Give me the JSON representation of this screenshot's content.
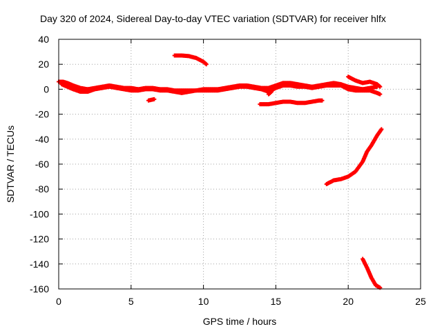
{
  "chart_data": {
    "type": "scatter",
    "title": "Day 320 of 2024, Sidereal Day-to-day VTEC variation (SDTVAR) for receiver hlfx",
    "xlabel": "GPS time / hours",
    "ylabel": "SDTVAR / TECUs",
    "xlim": [
      0,
      25
    ],
    "ylim": [
      -160,
      40
    ],
    "xticks": [
      0,
      5,
      10,
      15,
      20,
      25
    ],
    "yticks": [
      40,
      20,
      0,
      -20,
      -40,
      -60,
      -80,
      -100,
      -120,
      -140,
      -160
    ],
    "grid": true,
    "legend": "none",
    "marker_color": "#ff0000",
    "series": [
      {
        "points": [
          [
            0,
            6
          ],
          [
            0.3,
            6
          ],
          [
            0.6,
            5
          ],
          [
            1.0,
            3
          ],
          [
            1.5,
            1
          ],
          [
            2.0,
            0
          ],
          [
            2.5,
            1
          ],
          [
            3.0,
            2
          ],
          [
            3.5,
            3
          ],
          [
            4.0,
            2
          ],
          [
            4.5,
            1
          ],
          [
            5.0,
            1
          ],
          [
            5.5,
            0
          ],
          [
            6.0,
            1
          ],
          [
            6.5,
            1
          ],
          [
            7.0,
            0
          ],
          [
            7.5,
            0
          ],
          [
            8.0,
            -1
          ],
          [
            8.5,
            -1
          ],
          [
            9.0,
            -1
          ],
          [
            9.5,
            -1
          ],
          [
            10.0,
            0
          ],
          [
            10.5,
            0
          ],
          [
            11.0,
            0
          ],
          [
            11.5,
            1
          ],
          [
            12.0,
            2
          ],
          [
            12.5,
            3
          ],
          [
            13.0,
            3
          ],
          [
            13.5,
            2
          ],
          [
            14.0,
            1
          ],
          [
            14.5,
            1
          ],
          [
            15.0,
            3
          ],
          [
            15.5,
            5
          ],
          [
            16.0,
            5
          ],
          [
            16.5,
            4
          ],
          [
            17.0,
            3
          ],
          [
            17.5,
            2
          ],
          [
            18.0,
            3
          ],
          [
            18.5,
            4
          ],
          [
            19.0,
            5
          ],
          [
            19.5,
            4
          ],
          [
            20.0,
            2
          ],
          [
            20.5,
            1
          ],
          [
            21.0,
            0
          ],
          [
            21.5,
            1
          ],
          [
            22.0,
            2
          ]
        ]
      },
      {
        "points": [
          [
            0.2,
            4
          ],
          [
            0.6,
            2
          ],
          [
            1.0,
            0
          ],
          [
            1.5,
            -2
          ],
          [
            2.0,
            -2
          ],
          [
            2.5,
            0
          ],
          [
            3.0,
            1
          ],
          [
            3.5,
            2
          ],
          [
            4.0,
            1
          ],
          [
            4.5,
            0
          ],
          [
            5.0,
            -1
          ],
          [
            5.5,
            -1
          ],
          [
            6.0,
            0
          ],
          [
            6.5,
            0
          ],
          [
            7.0,
            -1
          ],
          [
            7.5,
            -1
          ],
          [
            8.0,
            -2
          ],
          [
            8.5,
            -3
          ],
          [
            9.0,
            -2
          ],
          [
            9.5,
            -1
          ],
          [
            10.0,
            -1
          ],
          [
            10.5,
            -1
          ],
          [
            11.0,
            -1
          ],
          [
            11.5,
            0
          ],
          [
            12.0,
            1
          ],
          [
            12.5,
            2
          ],
          [
            13.0,
            2
          ],
          [
            13.5,
            1
          ],
          [
            14.0,
            0
          ],
          [
            14.5,
            -2
          ],
          [
            15.0,
            1
          ],
          [
            15.5,
            3
          ],
          [
            16.0,
            3
          ],
          [
            16.5,
            2
          ],
          [
            17.0,
            2
          ],
          [
            17.5,
            1
          ],
          [
            18.0,
            2
          ],
          [
            18.5,
            3
          ],
          [
            19.0,
            3
          ],
          [
            19.5,
            3
          ],
          [
            20.0,
            0
          ],
          [
            20.5,
            -1
          ],
          [
            21.0,
            -1
          ],
          [
            21.5,
            -1
          ],
          [
            22.0,
            -3
          ],
          [
            22.2,
            -4
          ]
        ]
      },
      {
        "points": [
          [
            8.0,
            27
          ],
          [
            8.5,
            27
          ],
          [
            9.0,
            26.5
          ],
          [
            9.5,
            25
          ],
          [
            10.0,
            22
          ],
          [
            10.2,
            20
          ]
        ]
      },
      {
        "points": [
          [
            6.2,
            -9
          ],
          [
            6.6,
            -8
          ]
        ]
      },
      {
        "points": [
          [
            14.5,
            -4
          ],
          [
            14.7,
            -2
          ]
        ]
      },
      {
        "points": [
          [
            13.9,
            -12
          ],
          [
            14.5,
            -12
          ],
          [
            15.0,
            -11
          ],
          [
            15.5,
            -10
          ],
          [
            16.0,
            -10
          ],
          [
            16.5,
            -11
          ],
          [
            17.0,
            -11
          ],
          [
            17.5,
            -10
          ],
          [
            18.0,
            -9
          ],
          [
            18.2,
            -9
          ]
        ]
      },
      {
        "points": [
          [
            20.0,
            10
          ],
          [
            20.5,
            7
          ],
          [
            21.0,
            5
          ],
          [
            21.5,
            6
          ],
          [
            22.0,
            4
          ],
          [
            22.2,
            2
          ]
        ]
      },
      {
        "points": [
          [
            18.5,
            -76
          ],
          [
            19.0,
            -73
          ],
          [
            19.5,
            -72
          ],
          [
            20.0,
            -70
          ],
          [
            20.5,
            -66
          ],
          [
            21.0,
            -58
          ],
          [
            21.3,
            -50
          ],
          [
            21.6,
            -45
          ],
          [
            22.0,
            -37
          ],
          [
            22.3,
            -32
          ]
        ]
      },
      {
        "points": [
          [
            21.0,
            -136
          ],
          [
            21.3,
            -143
          ],
          [
            21.6,
            -151
          ],
          [
            21.9,
            -157
          ],
          [
            22.2,
            -159
          ]
        ]
      }
    ]
  }
}
